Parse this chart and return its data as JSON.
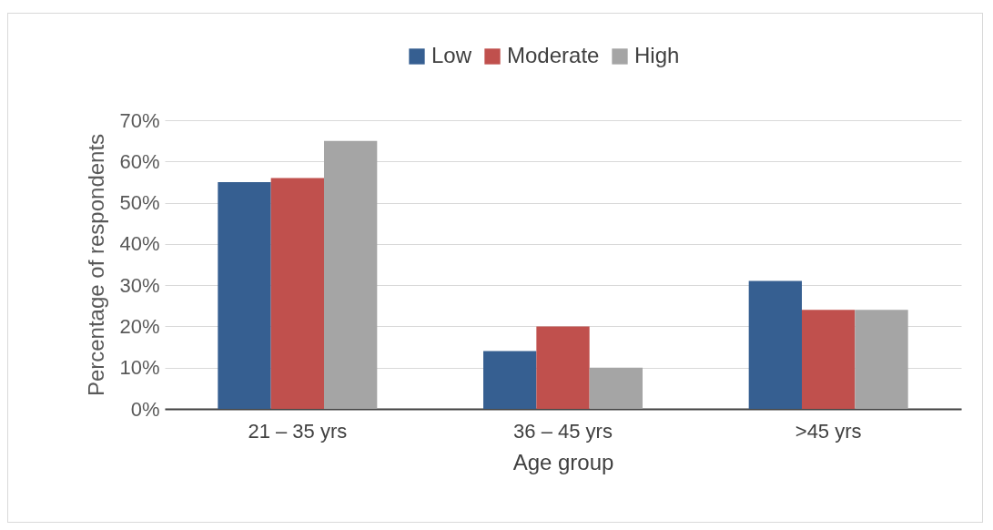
{
  "chart_data": {
    "type": "bar",
    "xlabel": "Age group",
    "ylabel": "Percentage of respondents",
    "categories": [
      "21 – 35 yrs",
      "36 – 45 yrs",
      ">45 yrs"
    ],
    "series": [
      {
        "name": "Low",
        "color": "#365f91",
        "values": [
          55,
          14,
          31
        ]
      },
      {
        "name": "Moderate",
        "color": "#c0504d",
        "values": [
          56,
          20,
          24
        ]
      },
      {
        "name": "High",
        "color": "#a5a5a5",
        "values": [
          65,
          10,
          24
        ]
      }
    ],
    "ylim": [
      0,
      70
    ],
    "yticks": [
      {
        "value": 0,
        "label": "0%"
      },
      {
        "value": 10,
        "label": "10%"
      },
      {
        "value": 20,
        "label": "20%"
      },
      {
        "value": 30,
        "label": "30%"
      },
      {
        "value": 40,
        "label": "40%"
      },
      {
        "value": 50,
        "label": "50%"
      },
      {
        "value": 60,
        "label": "60%"
      },
      {
        "value": 70,
        "label": "70%"
      }
    ],
    "grid": "y",
    "legend": "top"
  }
}
